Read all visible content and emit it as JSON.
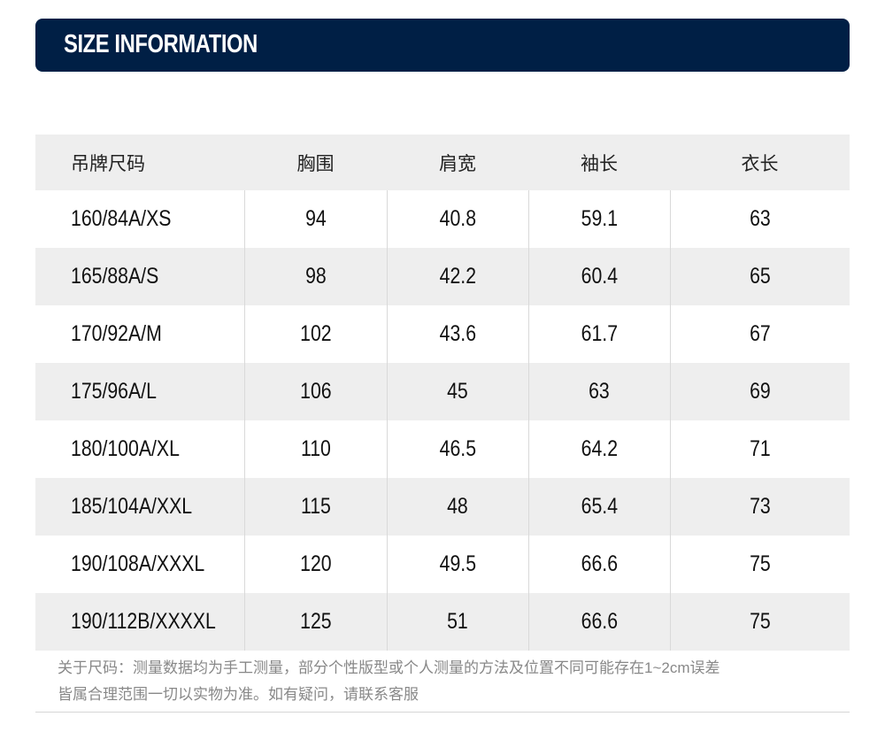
{
  "banner": {
    "title": "SIZE INFORMATION",
    "color": "#001f45"
  },
  "table": {
    "headers": [
      "吊牌尺码",
      "胸围",
      "肩宽",
      "袖长",
      "衣长"
    ],
    "rows": [
      [
        "160/84A/XS",
        "94",
        "40.8",
        "59.1",
        "63"
      ],
      [
        "165/88A/S",
        "98",
        "42.2",
        "60.4",
        "65"
      ],
      [
        "170/92A/M",
        "102",
        "43.6",
        "61.7",
        "67"
      ],
      [
        "175/96A/L",
        "106",
        "45",
        "63",
        "69"
      ],
      [
        "180/100A/XL",
        "110",
        "46.5",
        "64.2",
        "71"
      ],
      [
        "185/104A/XXL",
        "115",
        "48",
        "65.4",
        "73"
      ],
      [
        "190/108A/XXXL",
        "120",
        "49.5",
        "66.6",
        "75"
      ],
      [
        "190/112B/XXXXL",
        "125",
        "51",
        "66.6",
        "75"
      ]
    ]
  },
  "note": {
    "line1": "关于尺码：测量数据均为手工测量，部分个性版型或个人测量的方法及位置不同可能存在1~2cm误差",
    "line2": "皆属合理范围一切以实物为准。如有疑问，请联系客服"
  }
}
